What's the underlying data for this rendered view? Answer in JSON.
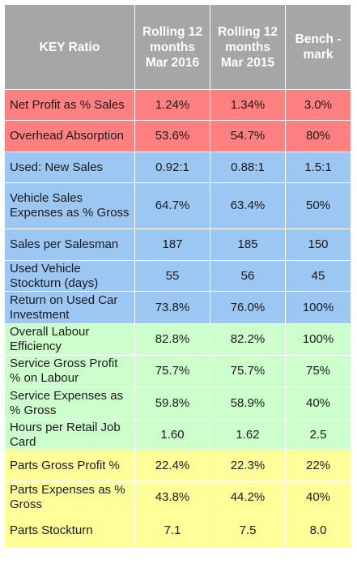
{
  "header": {
    "key_ratio": "KEY Ratio",
    "col_2016": "Rolling 12 months Mar 2016",
    "col_2015": "Rolling 12 months Mar 2015",
    "benchmark": "Bench -mark"
  },
  "colors": {
    "header_bg": "#a6a6a6",
    "red_group": "#ff8080",
    "blue_group": "#9cc7f2",
    "green_group": "#ccffcc",
    "yellow_group": "#ffff99"
  },
  "rows": [
    {
      "label": "Net Profit as % Sales",
      "v2016": "1.24%",
      "v2015": "1.34%",
      "bench": "3.0%",
      "group": "red"
    },
    {
      "label": "Overhead Absorption",
      "v2016": "53.6%",
      "v2015": "54.7%",
      "bench": "80%",
      "group": "red"
    },
    {
      "label": "Used: New Sales",
      "v2016": "0.92:1",
      "v2015": "0.88:1",
      "bench": "1.5:1",
      "group": "blue"
    },
    {
      "label": "Vehicle Sales Expenses as % Gross",
      "v2016": "64.7%",
      "v2015": "63.4%",
      "bench": "50%",
      "group": "blue"
    },
    {
      "label": "Sales per Salesman",
      "v2016": "187",
      "v2015": "185",
      "bench": "150",
      "group": "blue"
    },
    {
      "label": "Used Vehicle Stockturn (days)",
      "v2016": "55",
      "v2015": "56",
      "bench": "45",
      "group": "blue"
    },
    {
      "label": "Return on Used Car Investment",
      "v2016": "73.8%",
      "v2015": "76.0%",
      "bench": "100%",
      "group": "blue"
    },
    {
      "label": "Overall Labour Efficiency",
      "v2016": "82.8%",
      "v2015": "82.2%",
      "bench": "100%",
      "group": "green"
    },
    {
      "label": "Service Gross Profit % on Labour",
      "v2016": "75.7%",
      "v2015": "75.7%",
      "bench": "75%",
      "group": "green"
    },
    {
      "label": "Service Expenses as % Gross",
      "v2016": "59.8%",
      "v2015": "58.9%",
      "bench": "40%",
      "group": "green"
    },
    {
      "label": "Hours per Retail Job Card",
      "v2016": "1.60",
      "v2015": "1.62",
      "bench": "2.5",
      "group": "green"
    },
    {
      "label": "Parts Gross Profit %",
      "v2016": "22.4%",
      "v2015": "22.3%",
      "bench": "22%",
      "group": "yellow"
    },
    {
      "label": "Parts Expenses as % Gross",
      "v2016": "43.8%",
      "v2015": "44.2%",
      "bench": "40%",
      "group": "yellow"
    },
    {
      "label": "Parts Stockturn",
      "v2016": "7.1",
      "v2015": "7.5",
      "bench": "8.0",
      "group": "yellow"
    }
  ]
}
